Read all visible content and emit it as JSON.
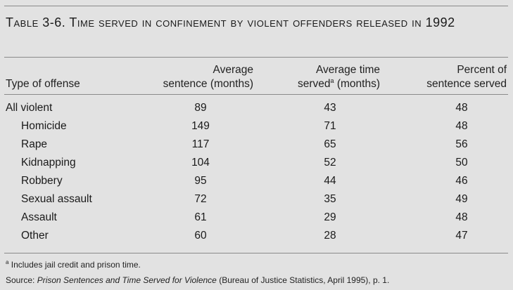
{
  "table": {
    "title": "Table 3-6. Time served in confinement by violent offenders released in 1992",
    "columns": {
      "type": "Type of offense",
      "sentence_line1": "Average",
      "sentence_line2": "sentence (months)",
      "served_line1": "Average time",
      "served_line2_a": "served",
      "served_marker": "a",
      "served_line2_b": " (months)",
      "percent_line1": "Percent of",
      "percent_line2": "sentence served"
    },
    "rows": [
      {
        "type": "All violent",
        "sentence": "89",
        "served": "43",
        "percent": "48"
      },
      {
        "type": "Homicide",
        "sentence": "149",
        "served": "71",
        "percent": "48"
      },
      {
        "type": "Rape",
        "sentence": "117",
        "served": "65",
        "percent": "56"
      },
      {
        "type": "Kidnapping",
        "sentence": "104",
        "served": "52",
        "percent": "50"
      },
      {
        "type": "Robbery",
        "sentence": "95",
        "served": "44",
        "percent": "46"
      },
      {
        "type": "Sexual assault",
        "sentence": "72",
        "served": "35",
        "percent": "49"
      },
      {
        "type": "Assault",
        "sentence": "61",
        "served": "29",
        "percent": "48"
      },
      {
        "type": "Other",
        "sentence": "60",
        "served": "28",
        "percent": "47"
      }
    ]
  },
  "footnote": {
    "marker": "a",
    "text": " Includes jail credit and prison time."
  },
  "source": {
    "prefix": "Source: ",
    "title": "Prison Sentences and Time Served for Violence",
    "suffix": " (Bureau of Justice Statistics, April 1995), p. 1."
  }
}
